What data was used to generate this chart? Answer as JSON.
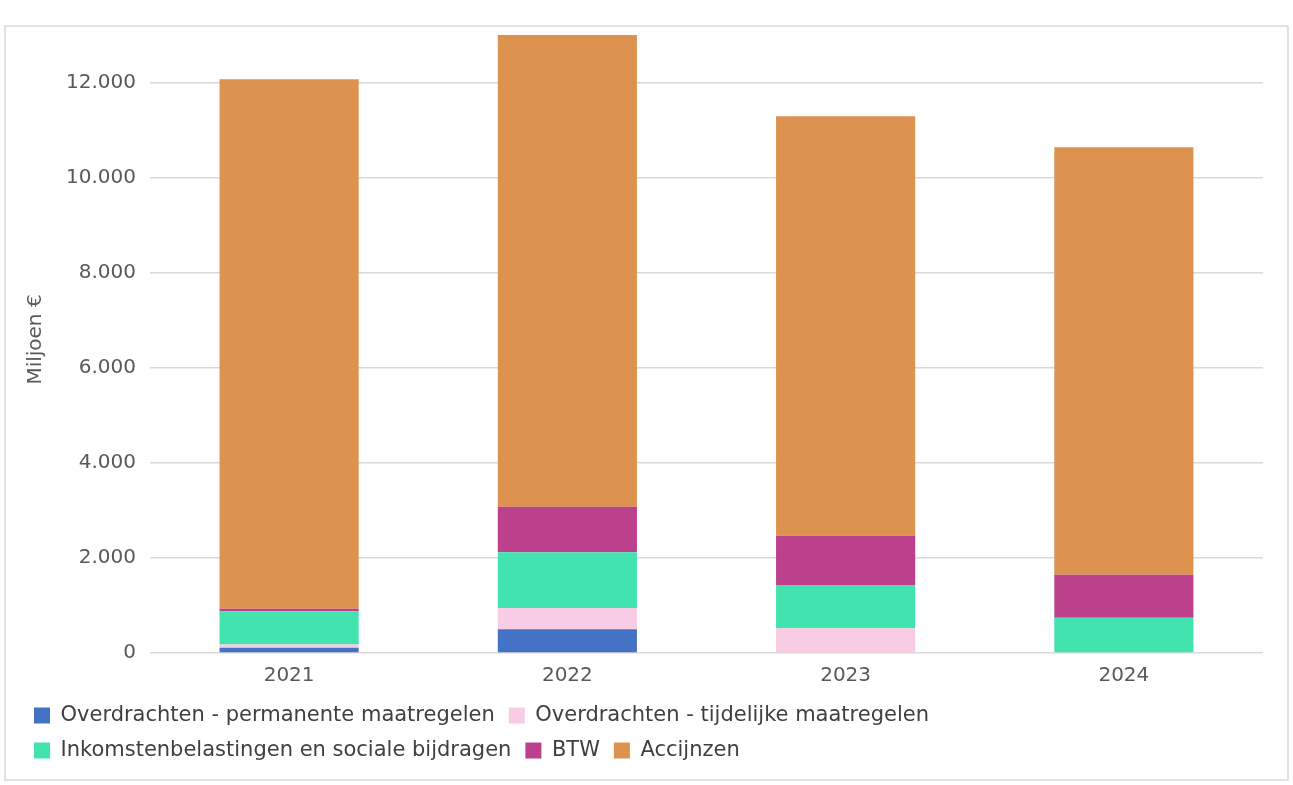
{
  "chart_data": {
    "type": "bar",
    "stacked": true,
    "ylabel": "Miljoen €",
    "categories": [
      "2021",
      "2022",
      "2023",
      "2024"
    ],
    "series": [
      {
        "name": "Overdrachten - permanente maatregelen",
        "color": "#4472c4",
        "values": [
          110,
          500,
          0,
          0
        ]
      },
      {
        "name": "Overdrachten - tijdelijke maatregelen",
        "color": "#f9cce6",
        "values": [
          70,
          450,
          520,
          0
        ]
      },
      {
        "name": "Inkomstenbelastingen en sociale bijdragen",
        "color": "#42e3ae",
        "values": [
          700,
          1170,
          910,
          740
        ]
      },
      {
        "name": "BTW",
        "color": "#bc408c",
        "values": [
          50,
          960,
          1040,
          910
        ]
      },
      {
        "name": "Accijnzen",
        "color": "#dd934f",
        "values": [
          11150,
          9930,
          8830,
          9000
        ]
      }
    ],
    "ylim": [
      0,
      13200
    ],
    "yticks": [
      0,
      {
        "value": 2000,
        "label": "2.000"
      },
      {
        "value": 4000,
        "label": "4.000"
      },
      {
        "value": 6000,
        "label": "6.000"
      },
      {
        "value": 8000,
        "label": "8.000"
      },
      {
        "value": 10000,
        "label": "10.000"
      },
      {
        "value": 12000,
        "label": "12.000"
      }
    ],
    "grid": "y",
    "legend": "bottom"
  }
}
